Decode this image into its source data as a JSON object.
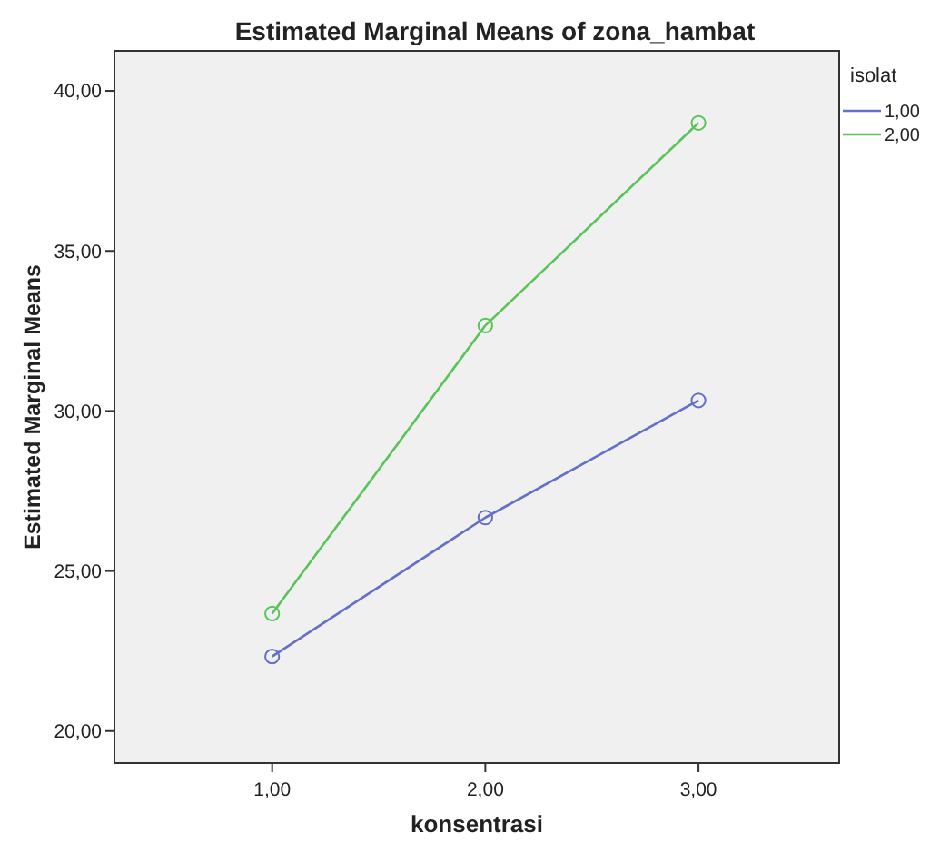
{
  "chart_data": {
    "type": "line",
    "title": "Estimated Marginal Means of zona_hambat",
    "xlabel": "konsentrasi",
    "ylabel": "Estimated Marginal Means",
    "legend_title": "isolat",
    "x": [
      1,
      2,
      3
    ],
    "series": [
      {
        "name": "1,00",
        "color": "#6470c8",
        "values": [
          22.33,
          26.67,
          30.33
        ]
      },
      {
        "name": "2,00",
        "color": "#5ac45a",
        "values": [
          23.67,
          32.67,
          39.0
        ]
      }
    ],
    "xlim": [
      0.26,
      3.66
    ],
    "xticks": [
      {
        "value": 1,
        "label": "1,00"
      },
      {
        "value": 2,
        "label": "2,00"
      },
      {
        "value": 3,
        "label": "3,00"
      }
    ],
    "ylim": [
      19,
      41.25
    ],
    "yticks": [
      {
        "value": 20,
        "label": "20,00"
      },
      {
        "value": 25,
        "label": "25,00"
      },
      {
        "value": 30,
        "label": "30,00"
      },
      {
        "value": 35,
        "label": "35,00"
      },
      {
        "value": 40,
        "label": "40,00"
      }
    ],
    "grid": false,
    "legend": "top right",
    "marker": "circle",
    "line_style": "solid"
  }
}
